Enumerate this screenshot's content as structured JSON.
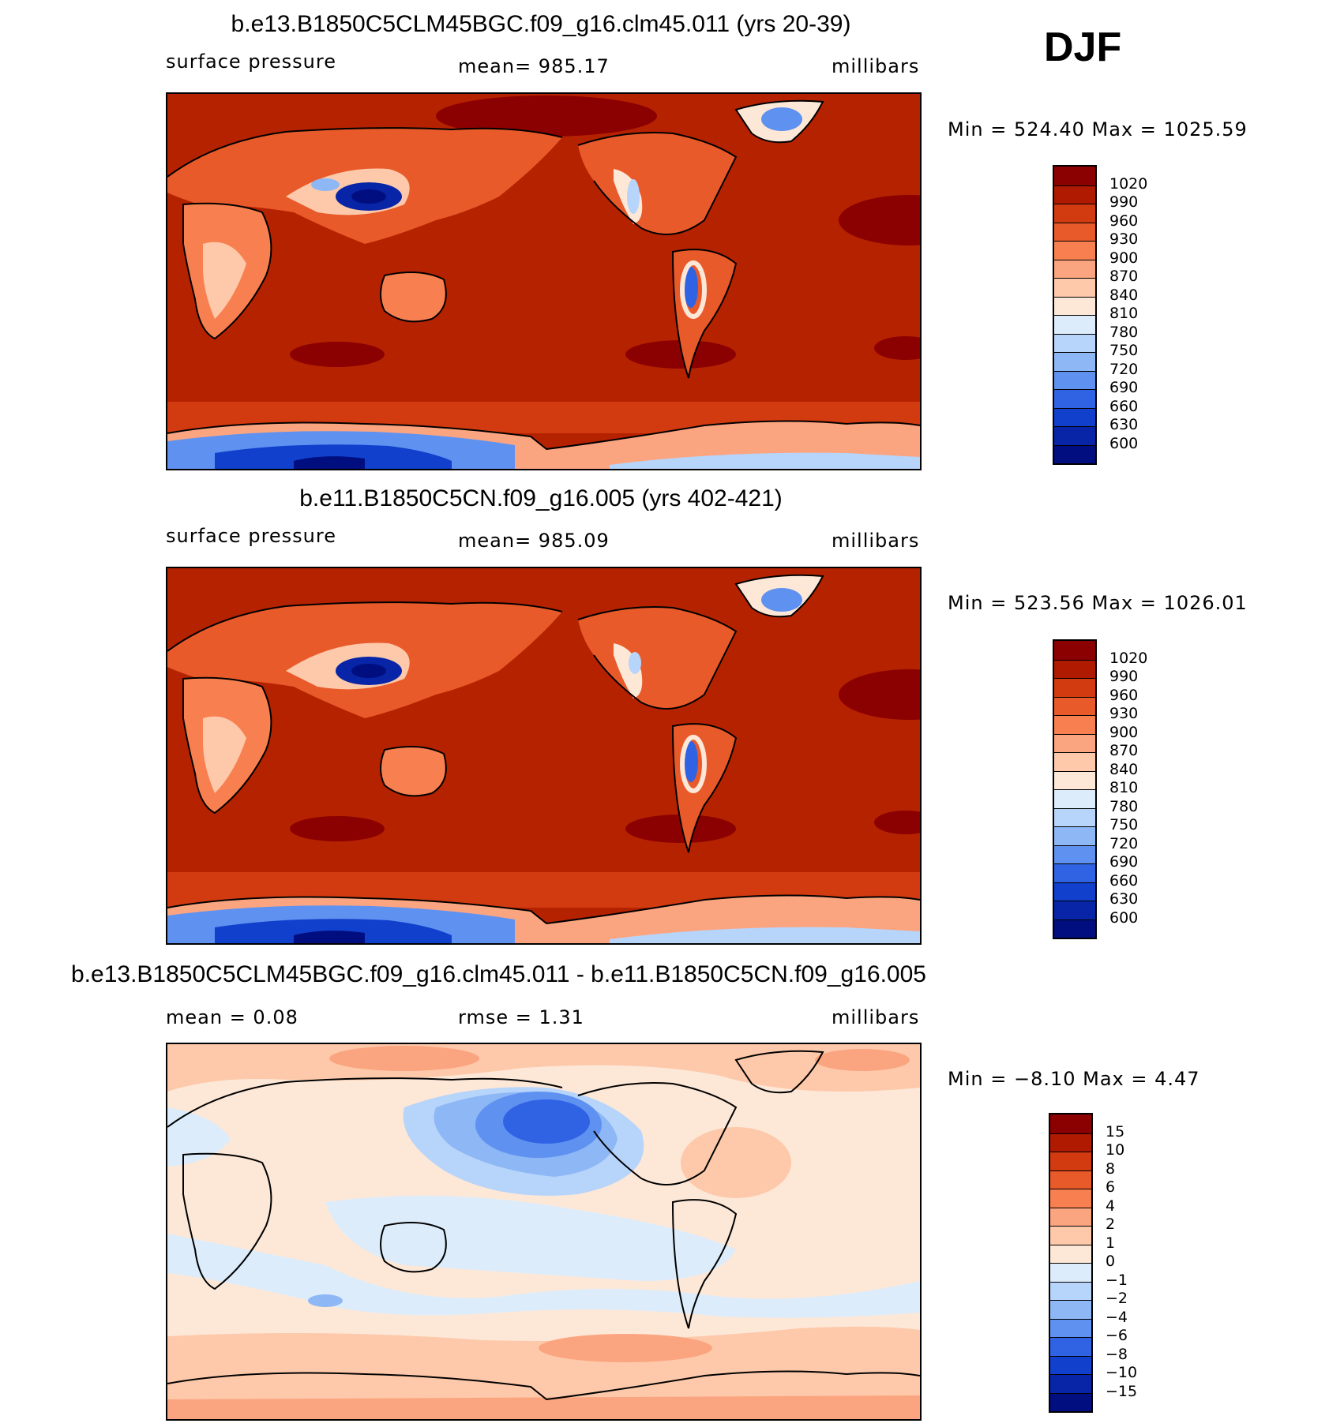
{
  "season": "DJF",
  "panels": [
    {
      "title": "b.e13.B1850C5CLM45BGC.f09_g16.clm45.011 (yrs 20-39)",
      "left_label": "surface pressure",
      "center_label": "mean=  985.17",
      "right_label": "millibars",
      "minmax": "Min  =  524.40  Max  =  1025.59"
    },
    {
      "title": "b.e11.B1850C5CN.f09_g16.005 (yrs 402-421)",
      "left_label": "surface pressure",
      "center_label": "mean=  985.09",
      "right_label": "millibars",
      "minmax": "Min  =  523.56  Max  =  1026.01"
    },
    {
      "title": "b.e13.B1850C5CLM45BGC.f09_g16.clm45.011 - b.e11.B1850C5CN.f09_g16.005",
      "left_label": "mean  =    0.08",
      "center_label": "rmse  =     1.31",
      "right_label": "millibars",
      "minmax": "Min  =   −8.10  Max  =      4.47"
    }
  ],
  "colorbars": {
    "absolute": {
      "labels": [
        "1020",
        "990",
        "960",
        "930",
        "900",
        "870",
        "840",
        "810",
        "780",
        "750",
        "720",
        "690",
        "660",
        "630",
        "600"
      ],
      "colors": [
        "#8b0000",
        "#b01a00",
        "#d23a10",
        "#e95a2a",
        "#f88050",
        "#fba580",
        "#fdc9aa",
        "#fde8d8",
        "#dcecfb",
        "#b7d4fa",
        "#8db7f5",
        "#5f91f0",
        "#2f63e4",
        "#1040cc",
        "#0725a6",
        "#000e80"
      ]
    },
    "difference": {
      "labels": [
        "15",
        "10",
        "8",
        "6",
        "4",
        "2",
        "1",
        "0",
        "−1",
        "−2",
        "−4",
        "−6",
        "−8",
        "−10",
        "−15"
      ],
      "colors": [
        "#8b0000",
        "#b01a00",
        "#d23a10",
        "#e95a2a",
        "#f88050",
        "#fba580",
        "#fdc9aa",
        "#fde8d8",
        "#dcecfb",
        "#b7d4fa",
        "#8db7f5",
        "#5f91f0",
        "#2f63e4",
        "#1040cc",
        "#0725a6",
        "#000e80"
      ]
    }
  }
}
